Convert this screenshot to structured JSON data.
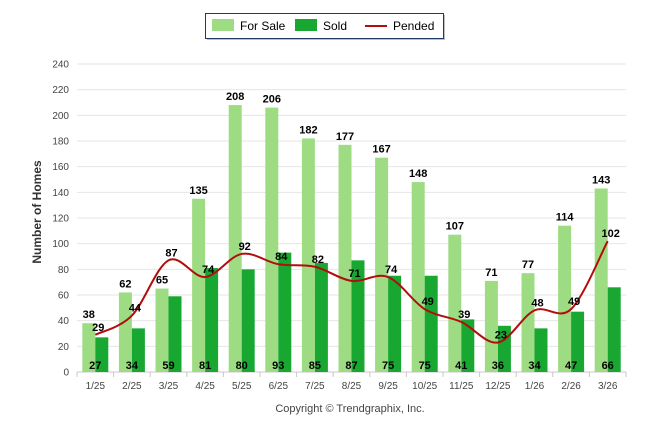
{
  "chart_data": {
    "type": "bar",
    "title": "",
    "xlabel": "",
    "ylabel": "Number of Homes",
    "ylim": [
      0,
      240
    ],
    "yticks": [
      0,
      20,
      40,
      60,
      80,
      100,
      120,
      140,
      160,
      180,
      200,
      220,
      240
    ],
    "grid": true,
    "legend_position": "top-center",
    "categories": [
      "1/25",
      "2/25",
      "3/25",
      "4/25",
      "5/25",
      "6/25",
      "7/25",
      "8/25",
      "9/25",
      "10/25",
      "11/25",
      "12/25",
      "1/26",
      "2/26",
      "3/26"
    ],
    "series": [
      {
        "name": "For Sale",
        "kind": "bar",
        "color": "#9edc84",
        "values": [
          38,
          62,
          65,
          135,
          208,
          206,
          182,
          177,
          167,
          148,
          107,
          71,
          77,
          114,
          143
        ]
      },
      {
        "name": "Sold",
        "kind": "bar",
        "color": "#18a832",
        "values": [
          27,
          34,
          59,
          81,
          80,
          93,
          85,
          87,
          75,
          75,
          41,
          36,
          34,
          47,
          66
        ]
      },
      {
        "name": "Pended",
        "kind": "line",
        "color": "#b20d0d",
        "values": [
          29,
          44,
          87,
          74,
          92,
          84,
          82,
          71,
          74,
          49,
          39,
          23,
          48,
          49,
          102
        ]
      }
    ]
  },
  "footer": {
    "copyright": "Copyright © Trendgraphix, Inc."
  }
}
